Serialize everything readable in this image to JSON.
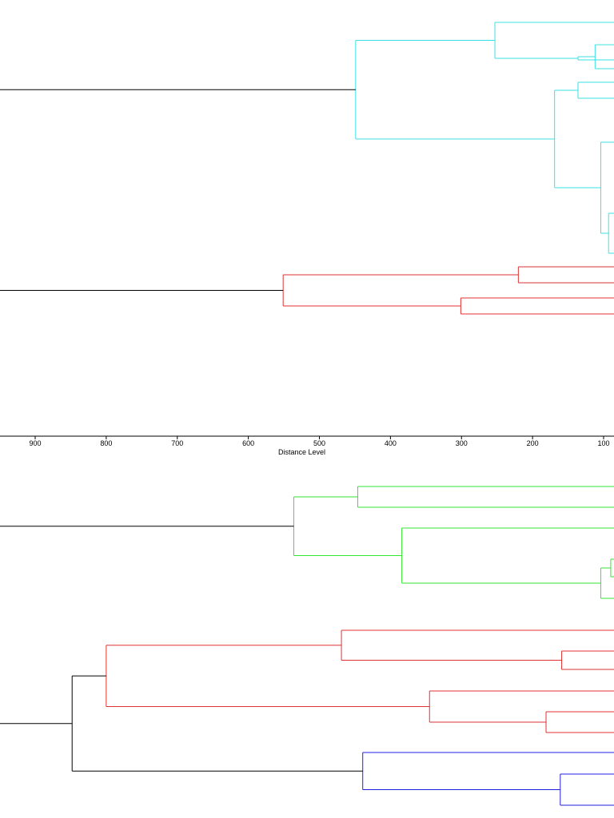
{
  "chart_data": [
    {
      "type": "dendrogram",
      "orientation": "right-to-left",
      "xlabel": "Distance Level",
      "x_ticks": [
        900,
        800,
        700,
        600,
        500,
        400,
        300,
        200,
        100
      ],
      "xlim": [
        1000,
        91
      ],
      "colors": {
        "cyan": "#37e2e6",
        "red": "#e03030",
        "black": "#000000"
      },
      "merges": [
        {
          "id": "c4",
          "color": "cyan",
          "distance": 112,
          "children": [
            {
              "leaf": true
            },
            {
              "leaf": true
            }
          ]
        },
        {
          "id": "c3",
          "color": "cyan",
          "distance": 136,
          "children": [
            {
              "leaf": true
            },
            {
              "ref": "c4"
            }
          ]
        },
        {
          "id": "c2",
          "color": "cyan",
          "distance": 253,
          "children": [
            {
              "leaf": true
            },
            {
              "ref": "c3"
            }
          ]
        },
        {
          "id": "c6",
          "color": "cyan",
          "distance": 136,
          "children": [
            {
              "leaf": true
            },
            {
              "leaf": true
            }
          ]
        },
        {
          "id": "c8",
          "color": "cyan",
          "distance": 93,
          "children": [
            {
              "leaf": true
            },
            {
              "leaf": true
            }
          ]
        },
        {
          "id": "c7",
          "color": "cyan",
          "distance": 104,
          "children": [
            {
              "leaf": true
            },
            {
              "ref": "c8"
            }
          ]
        },
        {
          "id": "c5",
          "color": "cyan",
          "distance": 169,
          "children": [
            {
              "ref": "c6"
            },
            {
              "ref": "c7"
            }
          ]
        },
        {
          "id": "c1",
          "color": "cyan",
          "distance": 449,
          "children": [
            {
              "ref": "c2"
            },
            {
              "ref": "c5"
            }
          ],
          "stem_color": "black"
        },
        {
          "id": "r2",
          "color": "red",
          "distance": 220,
          "children": [
            {
              "leaf": true
            },
            {
              "leaf": true
            }
          ]
        },
        {
          "id": "r3",
          "color": "red",
          "distance": 301,
          "children": [
            {
              "leaf": true
            },
            {
              "leaf": true
            }
          ]
        },
        {
          "id": "r1",
          "color": "red",
          "distance": 551,
          "children": [
            {
              "ref": "r2"
            },
            {
              "ref": "r3"
            }
          ],
          "stem_color": "black"
        }
      ]
    },
    {
      "type": "dendrogram",
      "orientation": "right-to-left",
      "xlim": [
        1000,
        91
      ],
      "colors": {
        "green": "#33e633",
        "red": "#e03030",
        "blue": "#2020e0",
        "black": "#000000"
      },
      "merges": [
        {
          "id": "g2",
          "color": "green",
          "distance": 446,
          "children": [
            {
              "leaf": true
            },
            {
              "leaf": true
            }
          ]
        },
        {
          "id": "g5",
          "color": "green",
          "distance": 90,
          "children": [
            {
              "leaf": true
            },
            {
              "leaf": true
            }
          ]
        },
        {
          "id": "g4",
          "color": "green",
          "distance": 104,
          "children": [
            {
              "ref": "g5"
            },
            {
              "leaf": true
            }
          ]
        },
        {
          "id": "g3",
          "color": "green",
          "distance": 384,
          "children": [
            {
              "leaf": true
            },
            {
              "ref": "g4"
            }
          ]
        },
        {
          "id": "g1",
          "color": "green",
          "distance": 536,
          "children": [
            {
              "ref": "g2"
            },
            {
              "ref": "g3"
            }
          ],
          "stem_color": "black"
        },
        {
          "id": "r5",
          "color": "red",
          "distance": 159,
          "children": [
            {
              "leaf": true
            },
            {
              "leaf": true
            }
          ]
        },
        {
          "id": "r4",
          "color": "red",
          "distance": 469,
          "children": [
            {
              "leaf": true
            },
            {
              "ref": "r5"
            }
          ]
        },
        {
          "id": "r7",
          "color": "red",
          "distance": 181,
          "children": [
            {
              "leaf": true
            },
            {
              "leaf": true
            }
          ]
        },
        {
          "id": "r6",
          "color": "red",
          "distance": 345,
          "children": [
            {
              "leaf": true
            },
            {
              "ref": "r7"
            }
          ]
        },
        {
          "id": "r3b",
          "color": "red",
          "distance": 800,
          "children": [
            {
              "ref": "r4"
            },
            {
              "ref": "r6"
            }
          ],
          "stem_color": "black"
        },
        {
          "id": "bl2",
          "color": "blue",
          "distance": 161,
          "children": [
            {
              "leaf": true
            },
            {
              "leaf": true
            }
          ]
        },
        {
          "id": "bl1",
          "color": "blue",
          "distance": 439,
          "children": [
            {
              "leaf": true
            },
            {
              "ref": "bl2"
            }
          ],
          "stem_color": "black"
        },
        {
          "id": "k1",
          "color": "black",
          "distance": 848,
          "children": [
            {
              "ref": "r3b"
            },
            {
              "ref": "bl1"
            }
          ]
        }
      ]
    }
  ]
}
